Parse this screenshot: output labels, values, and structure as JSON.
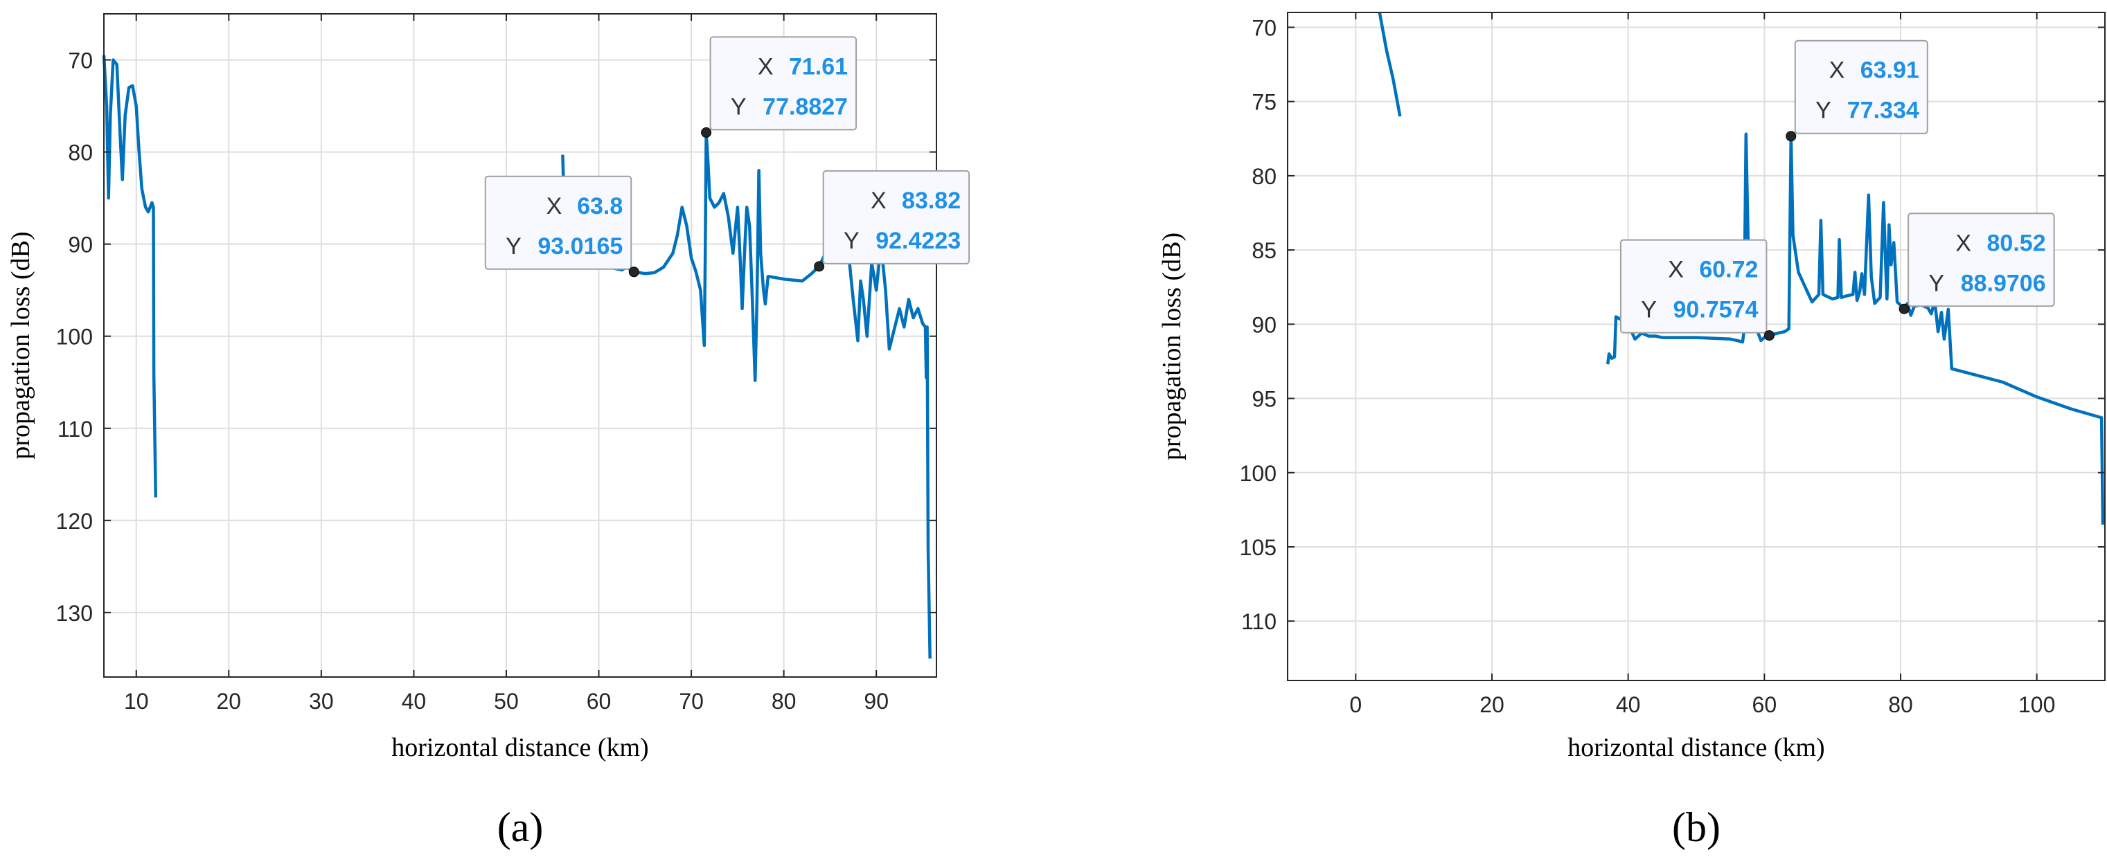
{
  "chart_data": [
    {
      "type": "line",
      "panel_label": "(a)",
      "xlabel": "horizontal distance (km)",
      "ylabel": "propagation loss (dB)",
      "xlim": [
        6.5,
        96.5
      ],
      "ylim": [
        137,
        65
      ],
      "y_reversed": true,
      "grid": true,
      "xticks": [
        10,
        20,
        30,
        40,
        50,
        60,
        70,
        80,
        90
      ],
      "yticks": [
        70,
        80,
        90,
        100,
        110,
        120,
        130
      ],
      "line_color": "#0072bd",
      "series": [
        {
          "segments": [
            [
              [
                6.5,
                69.5
              ],
              [
                6.8,
                75
              ],
              [
                7.0,
                85
              ],
              [
                7.2,
                76
              ],
              [
                7.5,
                70
              ],
              [
                7.9,
                70.5
              ],
              [
                8.3,
                79
              ],
              [
                8.5,
                83
              ],
              [
                8.8,
                76
              ],
              [
                9.2,
                73
              ],
              [
                9.6,
                72.8
              ],
              [
                10.0,
                75
              ],
              [
                10.3,
                80
              ],
              [
                10.6,
                84
              ],
              [
                11.0,
                86
              ],
              [
                11.3,
                86.5
              ],
              [
                11.5,
                86
              ],
              [
                11.7,
                85.5
              ],
              [
                11.85,
                86
              ],
              [
                11.9,
                104
              ],
              [
                12.1,
                117.5
              ]
            ],
            [
              [
                56.1,
                80.3
              ],
              [
                56.2,
                84
              ]
            ],
            [
              [
                58.5,
                91.5
              ],
              [
                59.5,
                92.0
              ],
              [
                60.5,
                92.2
              ],
              [
                61.5,
                92.6
              ],
              [
                62.5,
                92.8
              ],
              [
                63.0,
                92.5
              ],
              [
                63.8,
                93.0
              ],
              [
                65,
                93.2
              ],
              [
                66,
                93.1
              ],
              [
                67,
                92.5
              ],
              [
                68,
                91
              ],
              [
                68.5,
                89
              ],
              [
                69,
                86
              ],
              [
                69.5,
                88
              ],
              [
                70,
                91.5
              ],
              [
                70.5,
                93
              ],
              [
                71,
                95
              ],
              [
                71.4,
                101
              ],
              [
                71.5,
                92
              ],
              [
                71.61,
                77.9
              ],
              [
                71.8,
                81
              ],
              [
                72,
                85
              ],
              [
                72.5,
                86
              ],
              [
                73,
                85.5
              ],
              [
                73.5,
                84.5
              ],
              [
                74,
                87
              ],
              [
                74.5,
                91
              ],
              [
                74.8,
                88
              ],
              [
                75,
                86
              ],
              [
                75.3,
                92
              ],
              [
                75.5,
                97
              ],
              [
                75.8,
                90
              ],
              [
                76,
                86
              ],
              [
                76.3,
                88
              ],
              [
                76.6,
                96
              ],
              [
                76.9,
                104.8
              ],
              [
                77.1,
                96
              ],
              [
                77.3,
                82
              ],
              [
                77.5,
                91
              ],
              [
                77.8,
                95
              ],
              [
                78,
                96.5
              ],
              [
                78.3,
                93.5
              ],
              [
                80,
                93.8
              ],
              [
                82,
                94.0
              ],
              [
                83,
                93.2
              ],
              [
                83.82,
                92.4
              ],
              [
                84.5,
                91
              ],
              [
                85,
                88
              ],
              [
                85.5,
                89
              ],
              [
                86,
                87
              ],
              [
                86.5,
                92
              ],
              [
                87,
                91
              ],
              [
                87.5,
                96
              ],
              [
                88,
                100.5
              ],
              [
                88.3,
                94
              ],
              [
                88.6,
                96
              ],
              [
                89,
                100
              ],
              [
                89.5,
                92
              ],
              [
                90,
                95
              ],
              [
                90.5,
                90
              ],
              [
                91,
                95
              ],
              [
                91.4,
                101.4
              ],
              [
                92,
                99
              ],
              [
                92.5,
                97
              ],
              [
                93,
                99
              ],
              [
                93.5,
                96
              ],
              [
                94,
                98
              ],
              [
                94.5,
                97
              ],
              [
                95,
                98.6
              ],
              [
                95.3,
                99
              ],
              [
                95.4,
                104.5
              ],
              [
                95.5,
                99
              ],
              [
                95.6,
                123
              ],
              [
                95.8,
                135
              ]
            ]
          ]
        }
      ],
      "datatips": [
        {
          "x": 63.8,
          "y": 93.0165,
          "x_text": "63.8",
          "y_text": "93.0165",
          "box": "upper-left"
        },
        {
          "x": 71.61,
          "y": 77.8827,
          "x_text": "71.61",
          "y_text": "77.8827",
          "box": "upper-right"
        },
        {
          "x": 83.82,
          "y": 92.4223,
          "x_text": "83.82",
          "y_text": "92.4223",
          "box": "upper-right"
        }
      ]
    },
    {
      "type": "line",
      "panel_label": "(b)",
      "xlabel": "horizontal distance (km)",
      "ylabel": "propagation loss (dB)",
      "xlim": [
        -10,
        110
      ],
      "ylim": [
        114,
        69
      ],
      "y_reversed": true,
      "grid": true,
      "xticks": [
        0,
        20,
        40,
        60,
        80,
        100
      ],
      "yticks": [
        70,
        75,
        80,
        85,
        90,
        95,
        100,
        105,
        110
      ],
      "line_color": "#0072bd",
      "series": [
        {
          "segments": [
            [
              [
                3.5,
                69
              ],
              [
                4.5,
                71.5
              ],
              [
                5.5,
                73.5
              ],
              [
                6.5,
                76
              ]
            ],
            [
              [
                37.0,
                92.7
              ],
              [
                37.2,
                92.0
              ],
              [
                37.6,
                92.3
              ],
              [
                38.0,
                92.2
              ],
              [
                38.2,
                89.5
              ],
              [
                39,
                89.7
              ],
              [
                40,
                90.0
              ],
              [
                41,
                91.0
              ],
              [
                42,
                90.6
              ],
              [
                43,
                90.8
              ],
              [
                44,
                90.8
              ],
              [
                45,
                90.9
              ],
              [
                50,
                90.9
              ],
              [
                55,
                91.0
              ],
              [
                56,
                91.1
              ],
              [
                56.8,
                91.2
              ],
              [
                57.0,
                90.5
              ],
              [
                57.3,
                77.2
              ],
              [
                57.6,
                84
              ],
              [
                58,
                89
              ],
              [
                59,
                90.5
              ],
              [
                59.5,
                91.1
              ],
              [
                60,
                90.9
              ],
              [
                60.72,
                90.76
              ],
              [
                62,
                90.6
              ],
              [
                63,
                90.5
              ],
              [
                63.6,
                90.3
              ],
              [
                63.91,
                77.3
              ],
              [
                64.2,
                84
              ],
              [
                65,
                86.5
              ],
              [
                66,
                87.5
              ],
              [
                67,
                88.5
              ],
              [
                68,
                88.0
              ],
              [
                68.3,
                83.0
              ],
              [
                68.6,
                88.0
              ],
              [
                70,
                88.3
              ],
              [
                70.8,
                88.2
              ],
              [
                71.0,
                84.3
              ],
              [
                71.3,
                88.2
              ],
              [
                72,
                88.1
              ],
              [
                73,
                88.0
              ],
              [
                73.3,
                86.5
              ],
              [
                73.6,
                88.4
              ],
              [
                74,
                87.8
              ],
              [
                74.3,
                86.6
              ],
              [
                74.7,
                88.0
              ],
              [
                75.3,
                81.3
              ],
              [
                75.7,
                86.8
              ],
              [
                76.2,
                88.6
              ],
              [
                77,
                88.2
              ],
              [
                77.5,
                81.8
              ],
              [
                77.8,
                86.0
              ],
              [
                78,
                88.3
              ],
              [
                78.3,
                83.3
              ],
              [
                78.6,
                86
              ],
              [
                79,
                84.5
              ],
              [
                79.5,
                88.5
              ],
              [
                80.52,
                88.97
              ],
              [
                81,
                88.6
              ],
              [
                81.5,
                89.4
              ],
              [
                82,
                88.8
              ],
              [
                83,
                88.7
              ],
              [
                84,
                88.9
              ],
              [
                84.5,
                89.3
              ],
              [
                85,
                88.4
              ],
              [
                85.5,
                90.5
              ],
              [
                86,
                89.2
              ],
              [
                86.4,
                91.0
              ],
              [
                87,
                89.0
              ],
              [
                87.5,
                93.0
              ],
              [
                90,
                93.3
              ],
              [
                95,
                93.9
              ],
              [
                100,
                94.9
              ],
              [
                105,
                95.7
              ],
              [
                108,
                96.1
              ],
              [
                109.5,
                96.3
              ],
              [
                109.7,
                103.5
              ]
            ]
          ]
        }
      ],
      "datatips": [
        {
          "x": 60.72,
          "y": 90.7574,
          "x_text": "60.72",
          "y_text": "90.7574",
          "box": "upper-left"
        },
        {
          "x": 63.91,
          "y": 77.334,
          "x_text": "63.91",
          "y_text": "77.334",
          "box": "upper-right"
        },
        {
          "x": 80.52,
          "y": 88.9706,
          "x_text": "80.52",
          "y_text": "88.9706",
          "box": "upper-right"
        }
      ]
    }
  ],
  "datatip_labels": {
    "x": "X",
    "y": "Y"
  }
}
